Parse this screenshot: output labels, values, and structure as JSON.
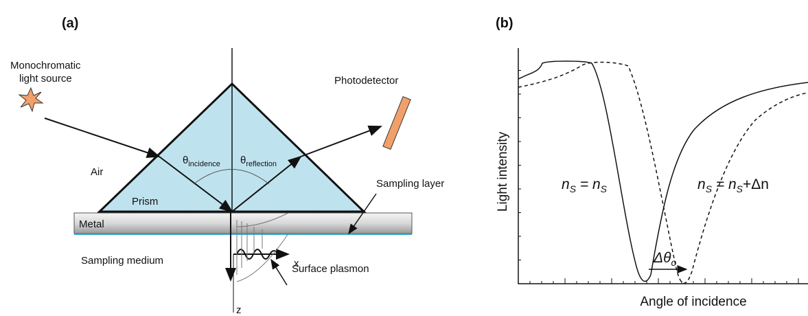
{
  "panel_a": {
    "label": "(a)",
    "light_source": [
      "Monochromatic",
      "light source"
    ],
    "photodetector": "Photodetector",
    "air": "Air",
    "prism": "Prism",
    "metal": "Metal",
    "sampling_layer": "Sampling layer",
    "sampling_medium": "Sampling medium",
    "surface_plasmon": "Surface plasmon",
    "theta_incidence": [
      "θ",
      "incidence"
    ],
    "theta_reflection": [
      "θ",
      "reflection"
    ],
    "axis_x": "x",
    "axis_z": "z"
  },
  "panel_b": {
    "label": "(b)",
    "y_axis_label": "Light intensity",
    "x_axis_label": "Angle of incidence",
    "curve_1_label": [
      "n",
      "S",
      " = n",
      "S"
    ],
    "curve_2_label": [
      "n",
      "S",
      " = n",
      "S",
      "+Δn"
    ],
    "shift_label": [
      "Δθ",
      "o"
    ]
  }
}
